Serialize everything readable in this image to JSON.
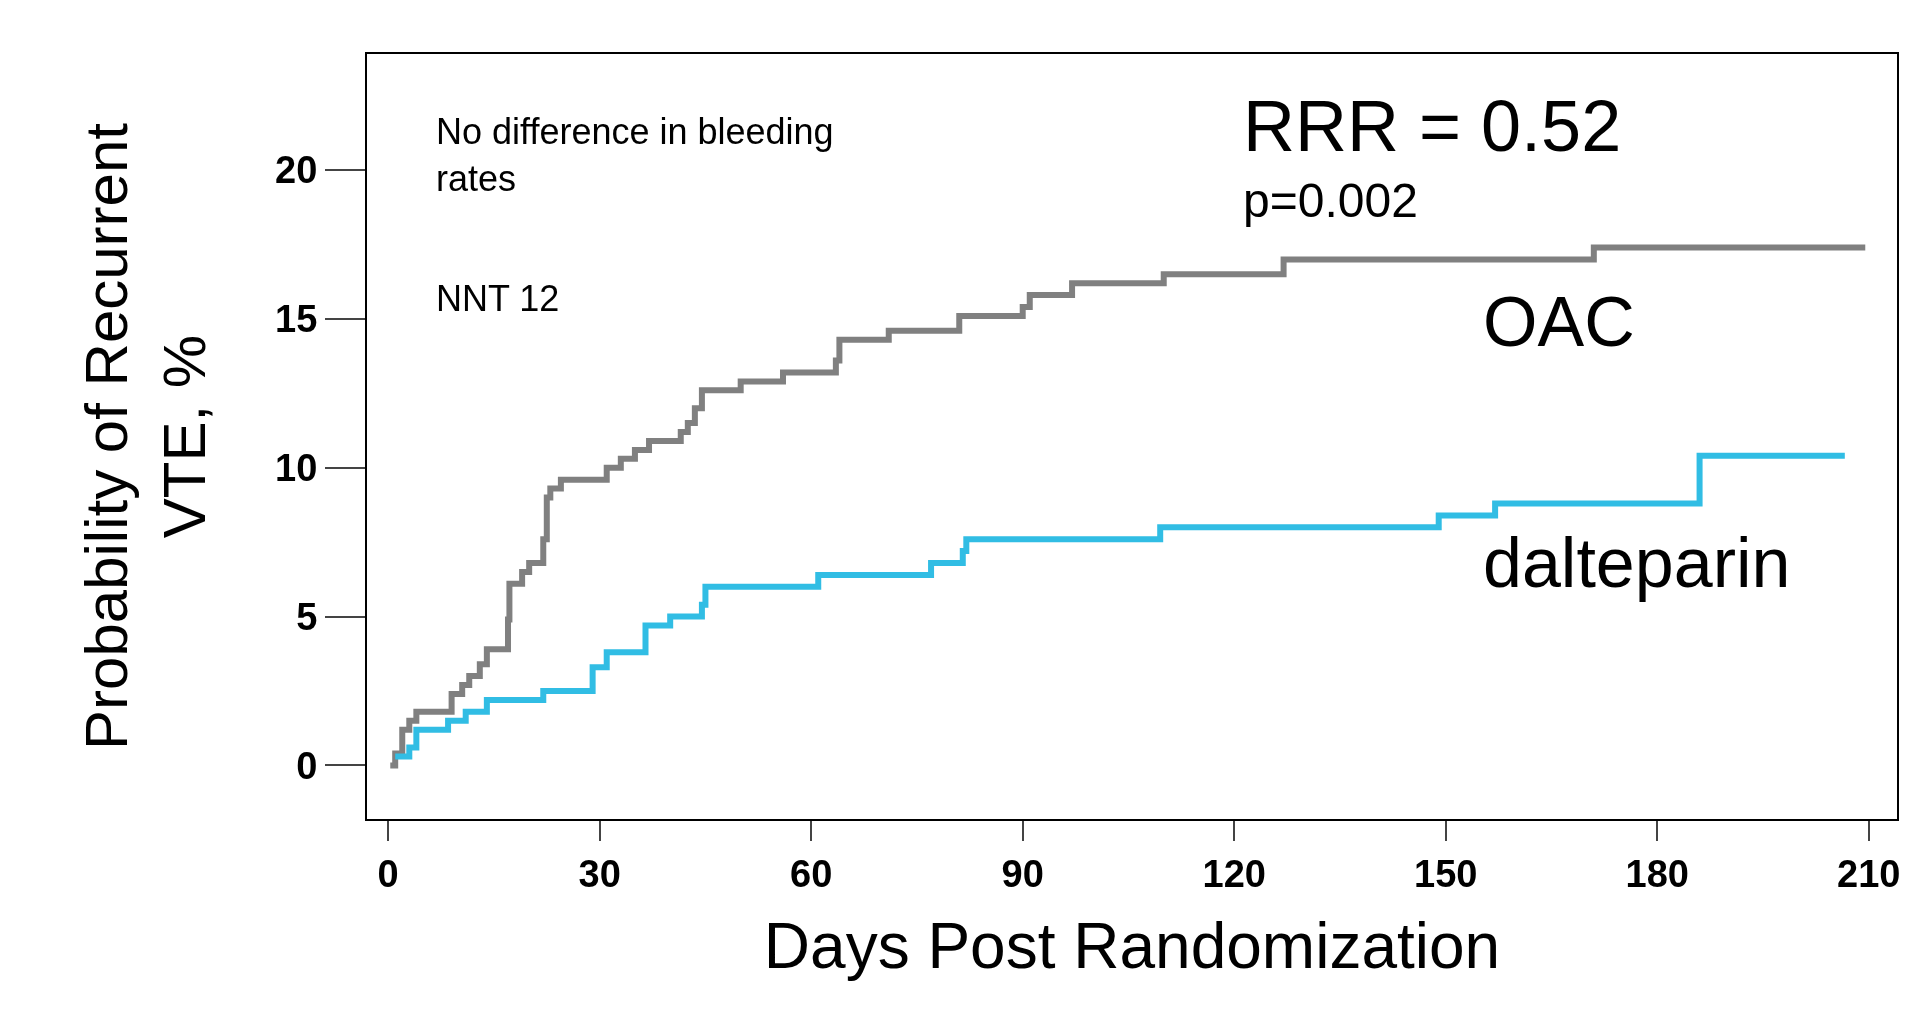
{
  "chart_data": {
    "type": "step",
    "xlabel": "Days Post Randomization",
    "ylabel": "Probability of Recurrent\nVTE, %",
    "xlim": [
      -3,
      214
    ],
    "xticks": [
      0,
      30,
      60,
      90,
      120,
      150,
      180,
      210
    ],
    "ylim": [
      -1.8,
      23.9
    ],
    "yticks": [
      0,
      5,
      10,
      15,
      20
    ],
    "legend": false,
    "marker": "none",
    "line_style": "solid",
    "annotations": [
      "No difference in bleeding\nrates",
      "NNT 12",
      "RRR = 0.52",
      "p=0.002"
    ],
    "series": [
      {
        "name": "OAC",
        "color": "#808080",
        "x": [
          0.3,
          1,
          2,
          3,
          4,
          9,
          10.5,
          11.5,
          13,
          14,
          17,
          17.2,
          19,
          20,
          22,
          22.5,
          23,
          24.5,
          31,
          33,
          35,
          37,
          41.5,
          42.5,
          43.5,
          44.5,
          50,
          56,
          63.5,
          64,
          71,
          81,
          90,
          91,
          97,
          110,
          127,
          171,
          209.5
        ],
        "values": [
          0,
          0.4,
          1.2,
          1.5,
          1.8,
          2.4,
          2.7,
          3.0,
          3.4,
          3.9,
          4.9,
          6.1,
          6.5,
          6.8,
          7.6,
          9.0,
          9.3,
          9.6,
          10.0,
          10.3,
          10.6,
          10.9,
          11.2,
          11.5,
          12.0,
          12.6,
          12.9,
          13.2,
          13.6,
          14.3,
          14.6,
          15.1,
          15.4,
          15.8,
          16.2,
          16.5,
          17.0,
          17.4,
          17.4
        ]
      },
      {
        "name": "dalteparin",
        "color": "#31bde4",
        "x": [
          1,
          3,
          4,
          8.5,
          11,
          14,
          22,
          29,
          31,
          36.5,
          40,
          44.5,
          45,
          61,
          77,
          81.5,
          82,
          109.5,
          149,
          157,
          186,
          206.6
        ],
        "values": [
          0.3,
          0.6,
          1.2,
          1.5,
          1.8,
          2.2,
          2.5,
          3.3,
          3.8,
          4.7,
          5.0,
          5.4,
          6.0,
          6.4,
          6.8,
          7.2,
          7.6,
          8.0,
          8.4,
          8.8,
          10.4,
          10.4
        ]
      }
    ]
  }
}
